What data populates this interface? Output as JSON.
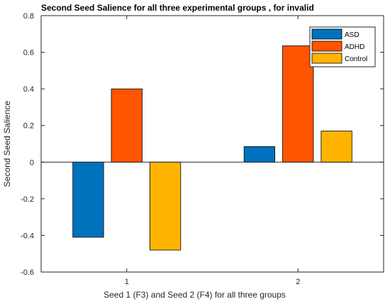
{
  "chart_data": {
    "type": "bar",
    "title": "Second Seed Salience for all three experimental groups , for invalid",
    "xlabel": "Seed 1 (F3) and Seed 2 (F4) for all three groups",
    "ylabel": "Second Seed Salience",
    "categories": [
      "1",
      "2"
    ],
    "series": [
      {
        "name": "ASD",
        "color": "#0072BD",
        "values": [
          -0.41,
          0.085
        ]
      },
      {
        "name": "ADHD",
        "color": "#FF5400",
        "values": [
          0.4,
          0.635
        ]
      },
      {
        "name": "Control",
        "color": "#FFB400",
        "values": [
          -0.48,
          0.17
        ]
      }
    ],
    "ylim": [
      -0.6,
      0.8
    ],
    "yticks": [
      -0.6,
      -0.4,
      -0.2,
      0,
      0.2,
      0.4,
      0.6,
      0.8
    ],
    "ytick_labels": [
      "-0.6",
      "-0.4",
      "-0.2",
      "0",
      "0.2",
      "0.4",
      "0.6",
      "0.8"
    ],
    "grid": false,
    "legend_position": "top-right"
  }
}
